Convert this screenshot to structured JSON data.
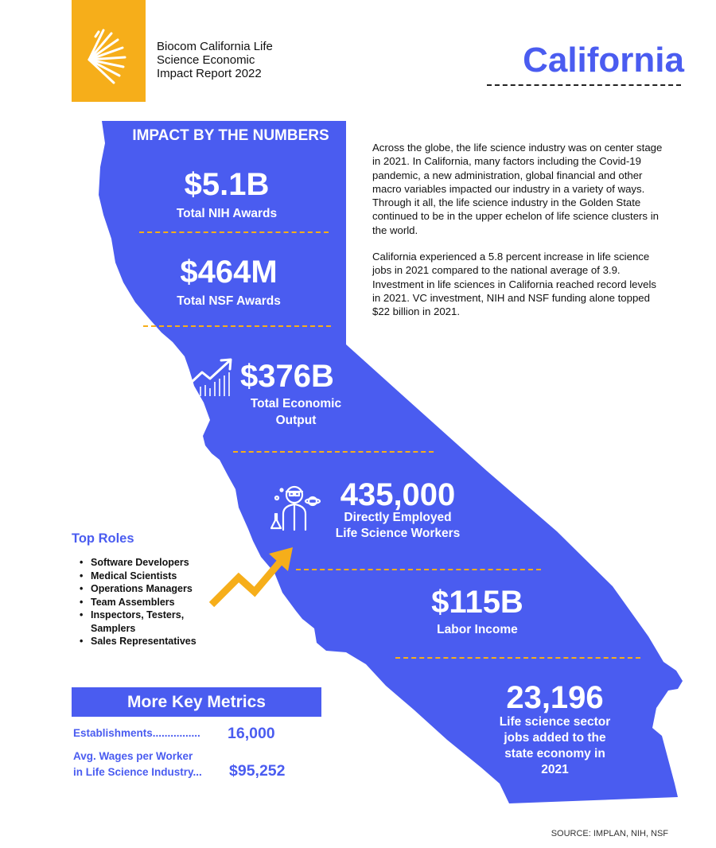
{
  "header": {
    "report_title": "Biocom California Life Science Economic Impact Report 2022",
    "state_title": "California",
    "logo_icon": "sunburst-logo-icon",
    "colors": {
      "accent_blue": "#4A5CF0",
      "accent_yellow": "#F6AE1A"
    }
  },
  "impact": {
    "heading": "IMPACT BY THE NUMBERS",
    "nih": {
      "value": "$5.1B",
      "label": "Total NIH Awards"
    },
    "nsf": {
      "value": "$464M",
      "label": "Total NSF Awards"
    },
    "output": {
      "value": "$376B",
      "label_line1": "Total Economic",
      "label_line2": "Output",
      "icon": "growth-chart-icon"
    },
    "employed": {
      "value": "435,000",
      "label_line1": "Directly Employed",
      "label_line2": "Life Science Workers",
      "icon": "scientist-icon"
    },
    "labor": {
      "value": "$115B",
      "label": "Labor Income"
    },
    "jobs_added": {
      "value": "23,196",
      "label_line1": "Life science sector",
      "label_line2": "jobs added to the",
      "label_line3": "state economy in",
      "label_line4": "2021"
    }
  },
  "intro": {
    "paragraph1": "Across the globe, the life science industry was on center stage in 2021. In California, many factors including the Covid-19 pandemic, a new administration, global financial and other macro variables impacted our industry in a variety of ways. Through it all, the life science industry in the Golden State continued to be in the upper echelon of life science clusters in the world.",
    "paragraph2": "California experienced a 5.8 percent increase in life science jobs in 2021 compared to the national average of 3.9. Investment in life sciences in California reached record levels in 2021. VC investment, NIH and NSF funding alone topped $22 billion in 2021."
  },
  "top_roles": {
    "heading": "Top Roles",
    "items": [
      "Software Developers",
      "Medical Scientists",
      "Operations Managers",
      "Team Assemblers",
      "Inspectors, Testers, Samplers",
      "Sales Representatives"
    ],
    "arrow_icon": "trend-arrow-icon"
  },
  "key_metrics": {
    "heading": "More Key Metrics",
    "establishments_label": "Establishments................",
    "establishments_value": "16,000",
    "wages_label_line1": "Avg. Wages per Worker",
    "wages_label_line2": "in Life Science Industry...",
    "wages_value": "$95,252"
  },
  "source": "SOURCE: IMPLAN, NIH, NSF"
}
